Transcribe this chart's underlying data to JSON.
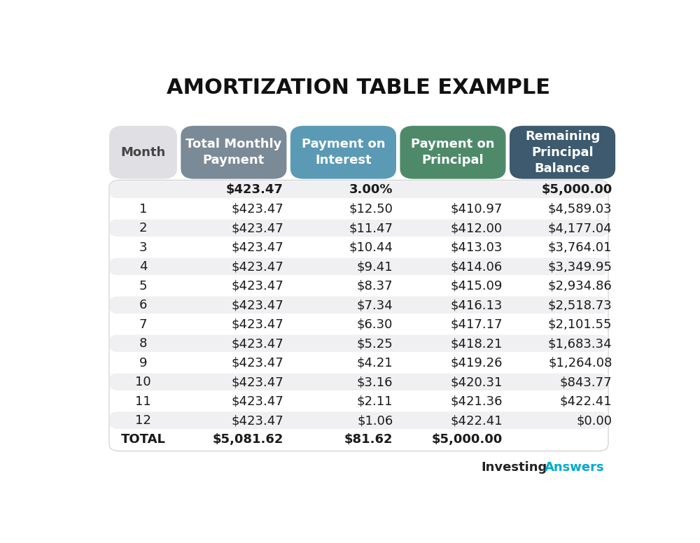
{
  "title": "AMORTIZATION TABLE EXAMPLE",
  "title_fontsize": 22,
  "background_color": "#ffffff",
  "col_headers": [
    "Month",
    "Total Monthly\nPayment",
    "Payment on\nInterest",
    "Payment on\nPrincipal",
    "Remaining\nPrincipal\nBalance"
  ],
  "col_header_colors": [
    "#e0e0e4",
    "#7a8a96",
    "#5b9ab5",
    "#4e8a6a",
    "#3d5a6e"
  ],
  "col_header_text_color": [
    "#444444",
    "#ffffff",
    "#ffffff",
    "#ffffff",
    "#ffffff"
  ],
  "rows": [
    [
      "",
      "$423.47",
      "3.00%",
      "",
      "$5,000.00"
    ],
    [
      "1",
      "$423.47",
      "$12.50",
      "$410.97",
      "$4,589.03"
    ],
    [
      "2",
      "$423.47",
      "$11.47",
      "$412.00",
      "$4,177.04"
    ],
    [
      "3",
      "$423.47",
      "$10.44",
      "$413.03",
      "$3,764.01"
    ],
    [
      "4",
      "$423.47",
      "$9.41",
      "$414.06",
      "$3,349.95"
    ],
    [
      "5",
      "$423.47",
      "$8.37",
      "$415.09",
      "$2,934.86"
    ],
    [
      "6",
      "$423.47",
      "$7.34",
      "$416.13",
      "$2,518.73"
    ],
    [
      "7",
      "$423.47",
      "$6.30",
      "$417.17",
      "$2,101.55"
    ],
    [
      "8",
      "$423.47",
      "$5.25",
      "$418.21",
      "$1,683.34"
    ],
    [
      "9",
      "$423.47",
      "$4.21",
      "$419.26",
      "$1,264.08"
    ],
    [
      "10",
      "$423.47",
      "$3.16",
      "$420.31",
      "$843.77"
    ],
    [
      "11",
      "$423.47",
      "$2.11",
      "$421.36",
      "$422.41"
    ],
    [
      "12",
      "$423.47",
      "$1.06",
      "$422.41",
      "$0.00"
    ],
    [
      "TOTAL",
      "$5,081.62",
      "$81.62",
      "$5,000.00",
      ""
    ]
  ],
  "bold_rows": [
    0,
    13
  ],
  "shaded_rows": [
    0,
    2,
    4,
    6,
    8,
    10,
    12
  ],
  "row_shade_color": "#f0f0f2",
  "data_fontsize": 13,
  "header_fontsize": 13
}
